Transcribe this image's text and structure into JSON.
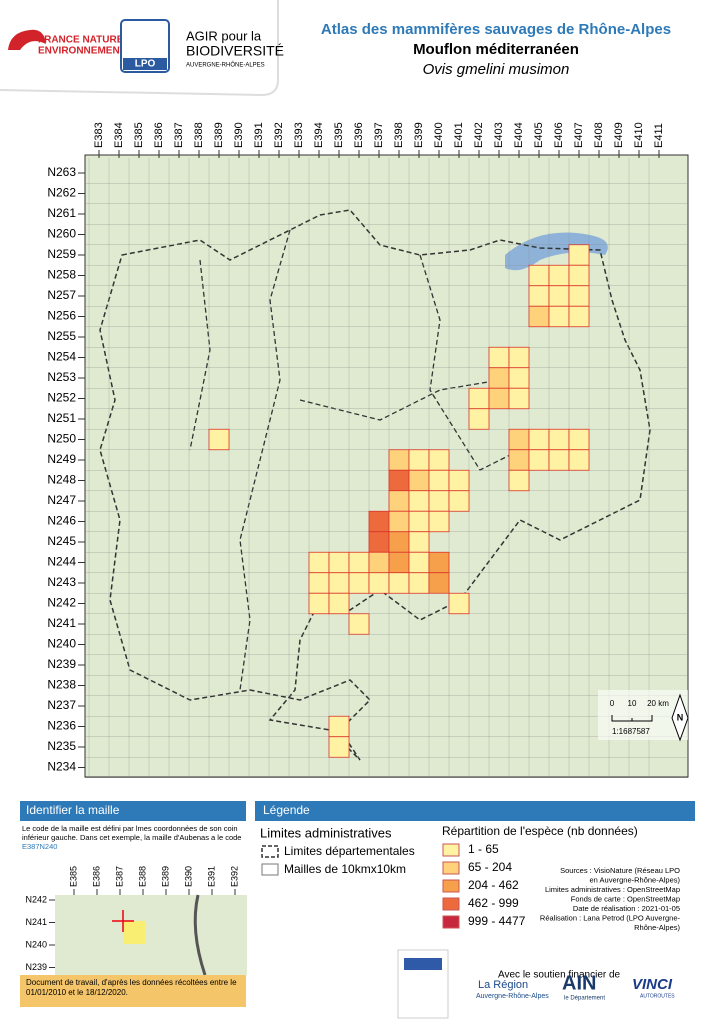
{
  "header": {
    "fne": [
      "FRANCE NATURE",
      "ENVIRONNEMENT"
    ],
    "lpo": "LPO",
    "agir": [
      "AGIR pour la",
      "BIODIVERSITÉ",
      "AUVERGNE-RHÔNE-ALPES"
    ],
    "title": "Atlas des mammifères sauvages de Rhône-Alpes",
    "species": "Mouflon méditerranéen",
    "latin": "Ovis gmelini musimon"
  },
  "map": {
    "columns": [
      "E383",
      "E384",
      "E385",
      "E386",
      "E387",
      "E388",
      "E389",
      "E390",
      "E391",
      "E392",
      "E393",
      "E394",
      "E395",
      "E396",
      "E397",
      "E398",
      "E399",
      "E400",
      "E401",
      "E402",
      "E403",
      "E404",
      "E405",
      "E406",
      "E407",
      "E408",
      "E409",
      "E410",
      "E411"
    ],
    "rows": [
      "N263",
      "N262",
      "N261",
      "N260",
      "N259",
      "N258",
      "N257",
      "N256",
      "N255",
      "N254",
      "N253",
      "N252",
      "N251",
      "N250",
      "N249",
      "N248",
      "N247",
      "N246",
      "N245",
      "N244",
      "N243",
      "N242",
      "N241",
      "N240",
      "N239",
      "N238",
      "N237",
      "N236",
      "N235",
      "N234"
    ],
    "occurrences": [
      {
        "e": "E407",
        "n": "N259",
        "class": 0
      },
      {
        "e": "E405",
        "n": "N258",
        "class": 0
      },
      {
        "e": "E406",
        "n": "N258",
        "class": 0
      },
      {
        "e": "E407",
        "n": "N258",
        "class": 0
      },
      {
        "e": "E405",
        "n": "N257",
        "class": 0
      },
      {
        "e": "E406",
        "n": "N257",
        "class": 0
      },
      {
        "e": "E407",
        "n": "N257",
        "class": 0
      },
      {
        "e": "E405",
        "n": "N256",
        "class": 1
      },
      {
        "e": "E406",
        "n": "N256",
        "class": 0
      },
      {
        "e": "E407",
        "n": "N256",
        "class": 0
      },
      {
        "e": "E403",
        "n": "N254",
        "class": 0
      },
      {
        "e": "E404",
        "n": "N254",
        "class": 0
      },
      {
        "e": "E403",
        "n": "N253",
        "class": 1
      },
      {
        "e": "E404",
        "n": "N253",
        "class": 0
      },
      {
        "e": "E402",
        "n": "N252",
        "class": 0
      },
      {
        "e": "E403",
        "n": "N252",
        "class": 1
      },
      {
        "e": "E404",
        "n": "N252",
        "class": 0
      },
      {
        "e": "E402",
        "n": "N251",
        "class": 0
      },
      {
        "e": "E389",
        "n": "N250",
        "class": 0
      },
      {
        "e": "E404",
        "n": "N250",
        "class": 1
      },
      {
        "e": "E405",
        "n": "N250",
        "class": 0
      },
      {
        "e": "E406",
        "n": "N250",
        "class": 0
      },
      {
        "e": "E407",
        "n": "N250",
        "class": 0
      },
      {
        "e": "E398",
        "n": "N249",
        "class": 1
      },
      {
        "e": "E399",
        "n": "N249",
        "class": 0
      },
      {
        "e": "E400",
        "n": "N249",
        "class": 0
      },
      {
        "e": "E404",
        "n": "N249",
        "class": 1
      },
      {
        "e": "E405",
        "n": "N249",
        "class": 0
      },
      {
        "e": "E406",
        "n": "N249",
        "class": 0
      },
      {
        "e": "E407",
        "n": "N249",
        "class": 0
      },
      {
        "e": "E398",
        "n": "N248",
        "class": 3
      },
      {
        "e": "E399",
        "n": "N248",
        "class": 1
      },
      {
        "e": "E400",
        "n": "N248",
        "class": 0
      },
      {
        "e": "E401",
        "n": "N248",
        "class": 0
      },
      {
        "e": "E404",
        "n": "N248",
        "class": 0
      },
      {
        "e": "E398",
        "n": "N247",
        "class": 1
      },
      {
        "e": "E399",
        "n": "N247",
        "class": 0
      },
      {
        "e": "E400",
        "n": "N247",
        "class": 0
      },
      {
        "e": "E401",
        "n": "N247",
        "class": 0
      },
      {
        "e": "E397",
        "n": "N246",
        "class": 3
      },
      {
        "e": "E398",
        "n": "N246",
        "class": 1
      },
      {
        "e": "E399",
        "n": "N246",
        "class": 0
      },
      {
        "e": "E400",
        "n": "N246",
        "class": 0
      },
      {
        "e": "E397",
        "n": "N245",
        "class": 3
      },
      {
        "e": "E398",
        "n": "N245",
        "class": 2
      },
      {
        "e": "E399",
        "n": "N245",
        "class": 0
      },
      {
        "e": "E394",
        "n": "N244",
        "class": 0
      },
      {
        "e": "E395",
        "n": "N244",
        "class": 0
      },
      {
        "e": "E396",
        "n": "N244",
        "class": 0
      },
      {
        "e": "E397",
        "n": "N244",
        "class": 1
      },
      {
        "e": "E398",
        "n": "N244",
        "class": 2
      },
      {
        "e": "E399",
        "n": "N244",
        "class": 0
      },
      {
        "e": "E400",
        "n": "N244",
        "class": 2
      },
      {
        "e": "E394",
        "n": "N243",
        "class": 0
      },
      {
        "e": "E395",
        "n": "N243",
        "class": 0
      },
      {
        "e": "E396",
        "n": "N243",
        "class": 0
      },
      {
        "e": "E397",
        "n": "N243",
        "class": 0
      },
      {
        "e": "E398",
        "n": "N243",
        "class": 0
      },
      {
        "e": "E399",
        "n": "N243",
        "class": 0
      },
      {
        "e": "E400",
        "n": "N243",
        "class": 2
      },
      {
        "e": "E394",
        "n": "N242",
        "class": 0
      },
      {
        "e": "E395",
        "n": "N242",
        "class": 0
      },
      {
        "e": "E401",
        "n": "N242",
        "class": 0
      },
      {
        "e": "E396",
        "n": "N241",
        "class": 0
      },
      {
        "e": "E395",
        "n": "N236",
        "class": 0
      },
      {
        "e": "E395",
        "n": "N235",
        "class": 0
      }
    ],
    "scale": [
      "0",
      "10",
      "20 km"
    ],
    "ratio": "1:1687587",
    "north": "N"
  },
  "identify": {
    "title": "Identifier la maille",
    "text": "Le code de la maille est défini par lmes coordonnées de son coin inférieur gauche. Dans cet exemple, la maille d'Aubenas a le code",
    "code": "E387N240",
    "columns": [
      "E385",
      "E386",
      "E387",
      "E388",
      "E389",
      "E390",
      "E391",
      "E392"
    ],
    "rows": [
      "N242",
      "N241",
      "N240",
      "N239"
    ],
    "note": "Document de travail, d'après les données récoltées entre le 01/01/2010 et le 18/12/2020."
  },
  "legend": {
    "title": "Légende",
    "admin_title": "Limites administratives",
    "admin": [
      "Limites départementales",
      "Mailles de 10kmx10km"
    ],
    "classes_title": "Répartition de l'espèce (nb données)",
    "classes": [
      {
        "label": "1 - 65",
        "color": "#fff3a3"
      },
      {
        "label": "65 - 204",
        "color": "#fdd27a"
      },
      {
        "label": "204 - 462",
        "color": "#f7a04c"
      },
      {
        "label": "462 - 999",
        "color": "#ec6a3c"
      },
      {
        "label": "999 - 4477",
        "color": "#c8283d"
      }
    ],
    "sources": [
      "Sources :  VisioNature (Réseau LPO",
      "en Auvergne-Rhône-Alpes)",
      "Limites administratives : OpenStreetMap",
      "Fonds de carte : OpenStreetMap",
      "Date de réalisation : 2021-01-05",
      "Réalisation :  Lana Petrod (LPO Auvergne-",
      "Rhône-Alpes)"
    ]
  },
  "support": {
    "title": "Avec le soutien financier de",
    "region": [
      "La Région",
      "Auvergne-Rhône-Alpes"
    ],
    "ain": [
      "AIN",
      "le Département"
    ],
    "vinci": [
      "VINCI",
      "AUTOROUTES"
    ]
  }
}
